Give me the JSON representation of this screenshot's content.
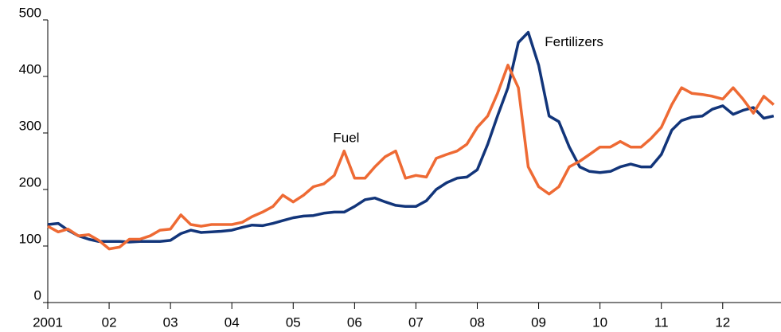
{
  "chart_data": {
    "type": "line",
    "x": [
      2001.0,
      2001.17,
      2001.33,
      2001.5,
      2001.67,
      2001.83,
      2002.0,
      2002.17,
      2002.33,
      2002.5,
      2002.67,
      2002.83,
      2003.0,
      2003.17,
      2003.33,
      2003.5,
      2003.67,
      2003.83,
      2004.0,
      2004.17,
      2004.33,
      2004.5,
      2004.67,
      2004.83,
      2005.0,
      2005.17,
      2005.33,
      2005.5,
      2005.67,
      2005.83,
      2006.0,
      2006.17,
      2006.33,
      2006.5,
      2006.67,
      2006.83,
      2007.0,
      2007.17,
      2007.33,
      2007.5,
      2007.67,
      2007.83,
      2008.0,
      2008.17,
      2008.33,
      2008.5,
      2008.67,
      2008.83,
      2009.0,
      2009.17,
      2009.33,
      2009.5,
      2009.67,
      2009.83,
      2010.0,
      2010.17,
      2010.33,
      2010.5,
      2010.67,
      2010.83,
      2011.0,
      2011.17,
      2011.33,
      2011.5,
      2011.67,
      2011.83,
      2012.0,
      2012.17,
      2012.33,
      2012.5,
      2012.67,
      2012.83
    ],
    "series": [
      {
        "name": "Fertilizers",
        "color": "#12357a",
        "values": [
          138,
          140,
          128,
          118,
          112,
          108,
          108,
          108,
          107,
          108,
          108,
          108,
          110,
          122,
          128,
          124,
          125,
          126,
          128,
          133,
          137,
          136,
          140,
          145,
          150,
          153,
          154,
          158,
          160,
          160,
          170,
          182,
          185,
          178,
          172,
          170,
          170,
          180,
          200,
          212,
          220,
          222,
          235,
          280,
          330,
          380,
          460,
          478,
          420,
          330,
          320,
          275,
          240,
          232,
          230,
          232,
          240,
          245,
          240,
          240,
          262,
          305,
          322,
          328,
          330,
          342,
          348,
          333,
          340,
          345,
          326,
          330
        ]
      },
      {
        "name": "Fuel",
        "color": "#ee6a34",
        "values": [
          135,
          125,
          130,
          118,
          120,
          110,
          95,
          98,
          112,
          112,
          118,
          128,
          130,
          155,
          138,
          135,
          138,
          138,
          138,
          142,
          152,
          160,
          170,
          190,
          178,
          190,
          205,
          210,
          225,
          268,
          220,
          220,
          240,
          258,
          268,
          220,
          225,
          222,
          255,
          262,
          268,
          280,
          310,
          330,
          370,
          420,
          380,
          240,
          205,
          192,
          205,
          240,
          250,
          262,
          275,
          275,
          285,
          275,
          275,
          290,
          310,
          350,
          380,
          370,
          368,
          365,
          360,
          380,
          360,
          335,
          365,
          350
        ]
      }
    ],
    "xlim": [
      2001,
      2012.95
    ],
    "xticks": [
      {
        "value": 2001,
        "label": "2001"
      },
      {
        "value": 2002,
        "label": "02"
      },
      {
        "value": 2003,
        "label": "03"
      },
      {
        "value": 2004,
        "label": "04"
      },
      {
        "value": 2005,
        "label": "05"
      },
      {
        "value": 2006,
        "label": "06"
      },
      {
        "value": 2007,
        "label": "07"
      },
      {
        "value": 2008,
        "label": "08"
      },
      {
        "value": 2009,
        "label": "09"
      },
      {
        "value": 2010,
        "label": "10"
      },
      {
        "value": 2011,
        "label": "11"
      },
      {
        "value": 2012,
        "label": "12"
      }
    ],
    "ylim": [
      0,
      500
    ],
    "yticks": [
      0,
      100,
      200,
      300,
      400,
      500
    ]
  }
}
